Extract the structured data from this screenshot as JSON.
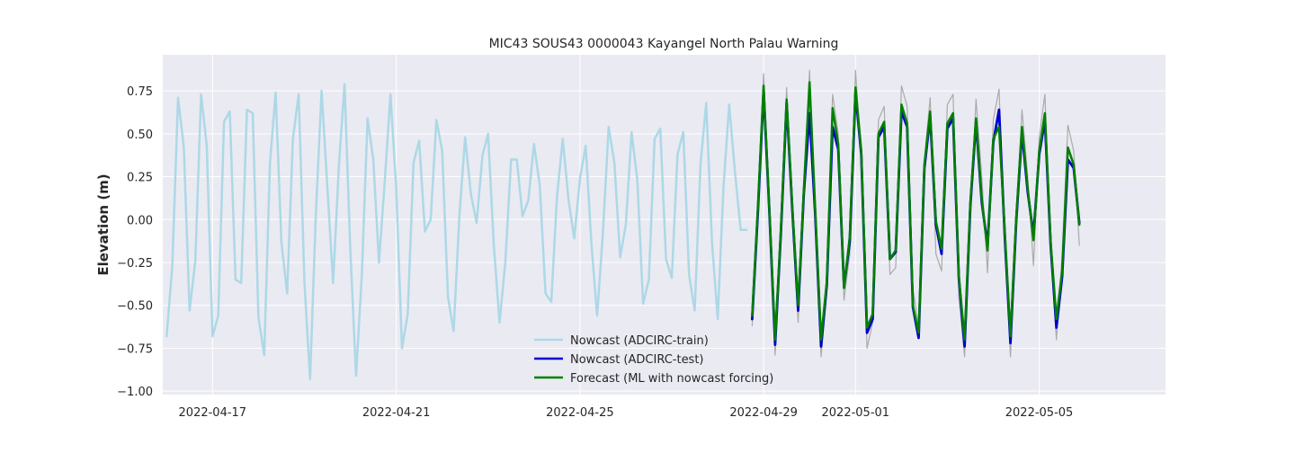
{
  "chart_data": {
    "type": "line",
    "title": "MIC43 SOUS43 0000043 Kayangel North Palau Warning",
    "xlabel": "",
    "ylabel": "Elevation (m)",
    "xlim": [
      "2022-04-15T22:00",
      "2022-05-07T18:00"
    ],
    "ylim": [
      -1.02,
      0.96
    ],
    "xticks": [
      "2022-04-17",
      "2022-04-21",
      "2022-04-25",
      "2022-04-29",
      "2022-05-01",
      "2022-05-05"
    ],
    "yticks": [
      -1.0,
      -0.75,
      -0.5,
      -0.25,
      0.0,
      0.25,
      0.5,
      0.75
    ],
    "ytick_labels": [
      "−1.00",
      "−0.75",
      "−0.50",
      "−0.25",
      "0.00",
      "0.25",
      "0.50",
      "0.75"
    ],
    "grid": true,
    "legend_position": "lower center",
    "colors": {
      "train": "#add8e6",
      "test": "#0000cd",
      "forecast": "#008000",
      "grey": "#aaaaaa",
      "plot_bg": "#eaeaf2"
    },
    "series": [
      {
        "name": "Nowcast (ADCIRC-train)",
        "key": "train",
        "x": [
          "2022-04-16T00:00",
          "2022-04-16T03:00",
          "2022-04-16T06:00",
          "2022-04-16T09:00",
          "2022-04-16T12:00",
          "2022-04-16T15:00",
          "2022-04-16T18:00",
          "2022-04-16T21:00",
          "2022-04-17T00:00",
          "2022-04-17T03:00",
          "2022-04-17T06:00",
          "2022-04-17T09:00",
          "2022-04-17T12:00",
          "2022-04-17T15:00",
          "2022-04-17T18:00",
          "2022-04-17T21:00",
          "2022-04-18T00:00",
          "2022-04-18T03:00",
          "2022-04-18T06:00",
          "2022-04-18T09:00",
          "2022-04-18T12:00",
          "2022-04-18T15:00",
          "2022-04-18T18:00",
          "2022-04-18T21:00",
          "2022-04-19T00:00",
          "2022-04-19T03:00",
          "2022-04-19T06:00",
          "2022-04-19T09:00",
          "2022-04-19T12:00",
          "2022-04-19T15:00",
          "2022-04-19T18:00",
          "2022-04-19T21:00",
          "2022-04-20T00:00",
          "2022-04-20T03:00",
          "2022-04-20T06:00",
          "2022-04-20T09:00",
          "2022-04-20T12:00",
          "2022-04-20T15:00",
          "2022-04-20T18:00",
          "2022-04-20T21:00",
          "2022-04-21T00:00",
          "2022-04-21T03:00",
          "2022-04-21T06:00",
          "2022-04-21T09:00",
          "2022-04-21T12:00",
          "2022-04-21T15:00",
          "2022-04-21T18:00",
          "2022-04-21T21:00",
          "2022-04-22T00:00",
          "2022-04-22T03:00",
          "2022-04-22T06:00",
          "2022-04-22T09:00",
          "2022-04-22T12:00",
          "2022-04-22T15:00",
          "2022-04-22T18:00",
          "2022-04-22T21:00",
          "2022-04-23T00:00",
          "2022-04-23T03:00",
          "2022-04-23T06:00",
          "2022-04-23T09:00",
          "2022-04-23T12:00",
          "2022-04-23T15:00",
          "2022-04-23T18:00",
          "2022-04-23T21:00",
          "2022-04-24T00:00",
          "2022-04-24T03:00",
          "2022-04-24T06:00",
          "2022-04-24T09:00",
          "2022-04-24T12:00",
          "2022-04-24T15:00",
          "2022-04-24T18:00",
          "2022-04-24T21:00",
          "2022-04-25T00:00",
          "2022-04-25T03:00",
          "2022-04-25T06:00",
          "2022-04-25T09:00",
          "2022-04-25T12:00",
          "2022-04-25T15:00",
          "2022-04-25T18:00",
          "2022-04-25T21:00",
          "2022-04-26T00:00",
          "2022-04-26T03:00",
          "2022-04-26T06:00",
          "2022-04-26T09:00",
          "2022-04-26T12:00",
          "2022-04-26T15:00",
          "2022-04-26T18:00",
          "2022-04-26T21:00",
          "2022-04-27T00:00",
          "2022-04-27T03:00",
          "2022-04-27T06:00",
          "2022-04-27T09:00",
          "2022-04-27T12:00",
          "2022-04-27T15:00",
          "2022-04-27T18:00",
          "2022-04-27T21:00",
          "2022-04-28T00:00",
          "2022-04-28T03:00",
          "2022-04-28T06:00",
          "2022-04-28T09:00",
          "2022-04-28T12:00",
          "2022-04-28T15:00"
        ],
        "y": [
          -0.68,
          -0.27,
          0.71,
          0.42,
          -0.53,
          -0.24,
          0.73,
          0.43,
          -0.68,
          -0.56,
          0.57,
          0.63,
          -0.35,
          -0.37,
          0.64,
          0.62,
          -0.57,
          -0.79,
          0.33,
          0.74,
          -0.13,
          -0.43,
          0.47,
          0.73,
          -0.36,
          -0.93,
          0.03,
          0.75,
          0.19,
          -0.37,
          0.31,
          0.79,
          -0.17,
          -0.91,
          -0.33,
          0.59,
          0.35,
          -0.25,
          0.22,
          0.73,
          0.18,
          -0.75,
          -0.55,
          0.33,
          0.46,
          -0.07,
          0.0,
          0.58,
          0.4,
          -0.45,
          -0.65,
          0.02,
          0.48,
          0.15,
          -0.02,
          0.37,
          0.5,
          -0.15,
          -0.6,
          -0.25,
          0.35,
          0.35,
          0.02,
          0.11,
          0.44,
          0.2,
          -0.43,
          -0.48,
          0.13,
          0.47,
          0.12,
          -0.11,
          0.24,
          0.43,
          -0.14,
          -0.56,
          -0.08,
          0.54,
          0.33,
          -0.22,
          -0.03,
          0.51,
          0.23,
          -0.49,
          -0.35,
          0.47,
          0.53,
          -0.23,
          -0.34,
          0.38,
          0.51,
          -0.32,
          -0.53,
          0.32,
          0.68,
          -0.13,
          -0.58,
          0.19,
          0.67,
          0.28,
          -0.06,
          -0.06
        ]
      },
      {
        "name": "Nowcast (ADCIRC-test)",
        "key": "test",
        "x": [
          "2022-04-28T18:00",
          "2022-04-28T21:00",
          "2022-04-29T00:00",
          "2022-04-29T03:00",
          "2022-04-29T06:00",
          "2022-04-29T09:00",
          "2022-04-29T12:00",
          "2022-04-29T15:00",
          "2022-04-29T18:00",
          "2022-04-29T21:00",
          "2022-04-30T00:00",
          "2022-04-30T03:00",
          "2022-04-30T06:00",
          "2022-04-30T09:00",
          "2022-04-30T12:00",
          "2022-04-30T15:00",
          "2022-04-30T18:00",
          "2022-04-30T21:00",
          "2022-05-01T00:00",
          "2022-05-01T03:00",
          "2022-05-01T06:00",
          "2022-05-01T09:00",
          "2022-05-01T12:00",
          "2022-05-01T15:00",
          "2022-05-01T18:00",
          "2022-05-01T21:00",
          "2022-05-02T00:00",
          "2022-05-02T03:00",
          "2022-05-02T06:00",
          "2022-05-02T09:00",
          "2022-05-02T12:00",
          "2022-05-02T15:00",
          "2022-05-02T18:00",
          "2022-05-02T21:00",
          "2022-05-03T00:00",
          "2022-05-03T03:00",
          "2022-05-03T06:00",
          "2022-05-03T09:00",
          "2022-05-03T12:00",
          "2022-05-03T15:00",
          "2022-05-03T18:00",
          "2022-05-03T21:00",
          "2022-05-04T00:00",
          "2022-05-04T03:00",
          "2022-05-04T06:00",
          "2022-05-04T09:00",
          "2022-05-04T12:00",
          "2022-05-04T15:00",
          "2022-05-04T18:00",
          "2022-05-04T21:00",
          "2022-05-05T00:00",
          "2022-05-05T03:00",
          "2022-05-05T06:00",
          "2022-05-05T09:00",
          "2022-05-05T12:00",
          "2022-05-05T15:00",
          "2022-05-05T18:00",
          "2022-05-05T21:00"
        ],
        "y": [
          -0.58,
          0.05,
          0.75,
          0.05,
          -0.73,
          -0.08,
          0.68,
          0.05,
          -0.53,
          0.15,
          0.62,
          0.02,
          -0.74,
          -0.38,
          0.54,
          0.41,
          -0.39,
          -0.13,
          0.74,
          0.38,
          -0.66,
          -0.58,
          0.48,
          0.54,
          -0.23,
          -0.19,
          0.63,
          0.54,
          -0.51,
          -0.69,
          0.3,
          0.6,
          -0.03,
          -0.2,
          0.53,
          0.59,
          -0.34,
          -0.74,
          0.08,
          0.57,
          0.1,
          -0.15,
          0.45,
          0.64,
          -0.1,
          -0.72,
          -0.01,
          0.51,
          0.16,
          -0.09,
          0.38,
          0.58,
          -0.15,
          -0.63,
          -0.33,
          0.35,
          0.3,
          -0.02
        ]
      },
      {
        "name": "Forecast (ML with nowcast forcing)",
        "key": "forecast",
        "x": [
          "2022-04-28T18:00",
          "2022-04-28T21:00",
          "2022-04-29T00:00",
          "2022-04-29T03:00",
          "2022-04-29T06:00",
          "2022-04-29T09:00",
          "2022-04-29T12:00",
          "2022-04-29T15:00",
          "2022-04-29T18:00",
          "2022-04-29T21:00",
          "2022-04-30T00:00",
          "2022-04-30T03:00",
          "2022-04-30T06:00",
          "2022-04-30T09:00",
          "2022-04-30T12:00",
          "2022-04-30T15:00",
          "2022-04-30T18:00",
          "2022-04-30T21:00",
          "2022-05-01T00:00",
          "2022-05-01T03:00",
          "2022-05-01T06:00",
          "2022-05-01T09:00",
          "2022-05-01T12:00",
          "2022-05-01T15:00",
          "2022-05-01T18:00",
          "2022-05-01T21:00",
          "2022-05-02T00:00",
          "2022-05-02T03:00",
          "2022-05-02T06:00",
          "2022-05-02T09:00",
          "2022-05-02T12:00",
          "2022-05-02T15:00",
          "2022-05-02T18:00",
          "2022-05-02T21:00",
          "2022-05-03T00:00",
          "2022-05-03T03:00",
          "2022-05-03T06:00",
          "2022-05-03T09:00",
          "2022-05-03T12:00",
          "2022-05-03T15:00",
          "2022-05-03T18:00",
          "2022-05-03T21:00",
          "2022-05-04T00:00",
          "2022-05-04T03:00",
          "2022-05-04T06:00",
          "2022-05-04T09:00",
          "2022-05-04T12:00",
          "2022-05-04T15:00",
          "2022-05-04T18:00",
          "2022-05-04T21:00",
          "2022-05-05T00:00",
          "2022-05-05T03:00",
          "2022-05-05T06:00",
          "2022-05-05T09:00",
          "2022-05-05T12:00",
          "2022-05-05T15:00",
          "2022-05-05T18:00",
          "2022-05-05T21:00"
        ],
        "y": [
          -0.56,
          0.08,
          0.78,
          0.06,
          -0.7,
          -0.06,
          0.7,
          0.07,
          -0.5,
          0.17,
          0.8,
          0.05,
          -0.7,
          -0.36,
          0.65,
          0.44,
          -0.4,
          -0.1,
          0.77,
          0.4,
          -0.63,
          -0.55,
          0.5,
          0.57,
          -0.23,
          -0.18,
          0.67,
          0.56,
          -0.5,
          -0.66,
          0.32,
          0.63,
          -0.01,
          -0.17,
          0.56,
          0.62,
          -0.33,
          -0.7,
          0.1,
          0.59,
          0.12,
          -0.18,
          0.47,
          0.54,
          -0.07,
          -0.68,
          0.01,
          0.54,
          0.18,
          -0.12,
          0.4,
          0.62,
          -0.13,
          -0.58,
          -0.3,
          0.42,
          0.32,
          -0.03
        ]
      },
      {
        "key": "grey",
        "x": [
          "2022-04-28T18:00",
          "2022-04-28T21:00",
          "2022-04-29T00:00",
          "2022-04-29T03:00",
          "2022-04-29T06:00",
          "2022-04-29T09:00",
          "2022-04-29T12:00",
          "2022-04-29T15:00",
          "2022-04-29T18:00",
          "2022-04-29T21:00",
          "2022-04-30T00:00",
          "2022-04-30T03:00",
          "2022-04-30T06:00",
          "2022-04-30T09:00",
          "2022-04-30T12:00",
          "2022-04-30T15:00",
          "2022-04-30T18:00",
          "2022-04-30T21:00",
          "2022-05-01T00:00",
          "2022-05-01T03:00",
          "2022-05-01T06:00",
          "2022-05-01T09:00",
          "2022-05-01T12:00",
          "2022-05-01T15:00",
          "2022-05-01T18:00",
          "2022-05-01T21:00",
          "2022-05-02T00:00",
          "2022-05-02T03:00",
          "2022-05-02T06:00",
          "2022-05-02T09:00",
          "2022-05-02T12:00",
          "2022-05-02T15:00",
          "2022-05-02T18:00",
          "2022-05-02T21:00",
          "2022-05-03T00:00",
          "2022-05-03T03:00",
          "2022-05-03T06:00",
          "2022-05-03T09:00",
          "2022-05-03T12:00",
          "2022-05-03T15:00",
          "2022-05-03T18:00",
          "2022-05-03T21:00",
          "2022-05-04T00:00",
          "2022-05-04T03:00",
          "2022-05-04T06:00",
          "2022-05-04T09:00",
          "2022-05-04T12:00",
          "2022-05-04T15:00",
          "2022-05-04T18:00",
          "2022-05-04T21:00",
          "2022-05-05T00:00",
          "2022-05-05T03:00",
          "2022-05-05T06:00",
          "2022-05-05T09:00",
          "2022-05-05T12:00",
          "2022-05-05T15:00",
          "2022-05-05T18:00",
          "2022-05-05T21:00"
        ],
        "y": [
          -0.62,
          0.1,
          0.85,
          0.0,
          -0.79,
          -0.12,
          0.77,
          0.0,
          -0.6,
          0.1,
          0.87,
          0.0,
          -0.8,
          -0.42,
          0.73,
          0.5,
          -0.47,
          -0.2,
          0.87,
          0.35,
          -0.75,
          -0.6,
          0.58,
          0.66,
          -0.32,
          -0.28,
          0.78,
          0.66,
          -0.4,
          -0.62,
          0.35,
          0.71,
          -0.2,
          -0.3,
          0.67,
          0.73,
          -0.45,
          -0.8,
          0.03,
          0.7,
          0.25,
          -0.31,
          0.58,
          0.76,
          -0.12,
          -0.8,
          0.0,
          0.64,
          0.25,
          -0.27,
          0.48,
          0.73,
          -0.17,
          -0.7,
          -0.2,
          0.55,
          0.4,
          -0.15
        ]
      }
    ]
  }
}
